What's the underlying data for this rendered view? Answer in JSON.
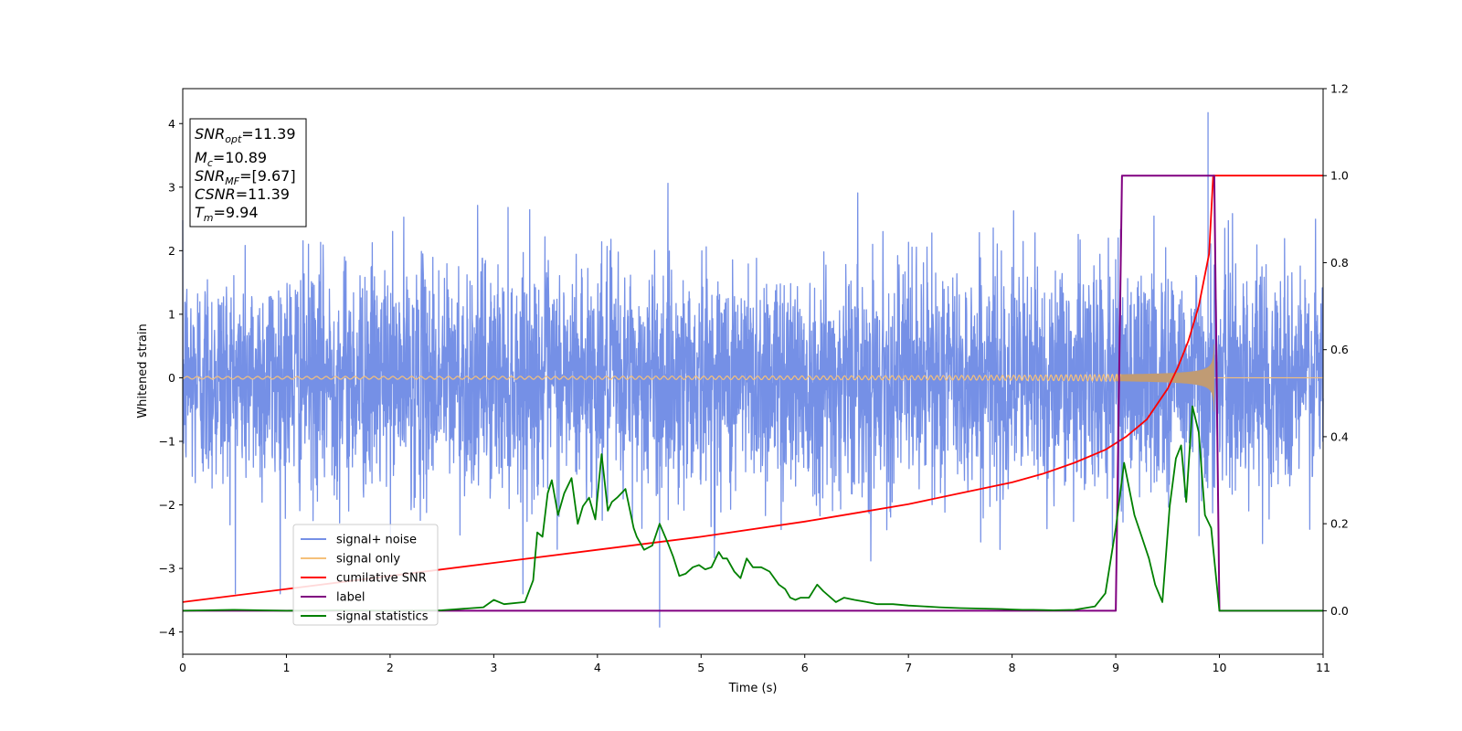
{
  "chart_data": {
    "type": "line",
    "xlabel": "Time (s)",
    "ylabel": "Whitened strain",
    "xlim": [
      0,
      11
    ],
    "ylim_left": [
      -4.35,
      4.55
    ],
    "ylim_right": [
      -0.1,
      1.2
    ],
    "x_ticks": [
      "0",
      "1",
      "2",
      "3",
      "4",
      "5",
      "6",
      "7",
      "8",
      "9",
      "10",
      "11"
    ],
    "y_ticks_left": [
      "4",
      "3",
      "2",
      "1",
      "0",
      "−1",
      "−2",
      "−3",
      "−4"
    ],
    "y_ticks_left_values": [
      4,
      3,
      2,
      1,
      0,
      -1,
      -2,
      -3,
      -4
    ],
    "y_ticks_right": [
      "1.2",
      "1.0",
      "0.8",
      "0.6",
      "0.4",
      "0.2",
      "0.0"
    ],
    "y_ticks_right_values": [
      1.2,
      1.0,
      0.8,
      0.6,
      0.4,
      0.2,
      0.0
    ],
    "grid": false,
    "legend_position": "lower-left",
    "info_box": {
      "snr_opt": "=11.39",
      "mc": "=10.89",
      "snr_mf": "=[9.67]",
      "csnr": "=11.39",
      "tm": "=9.94"
    },
    "series": [
      {
        "name": "signal+ noise",
        "axis": "left",
        "color": "#7590e6",
        "description_values": {
          "noise_amplitude_typical": 1.8,
          "max_peak": 4.18,
          "max_peak_time": 9.89,
          "min_peak": -3.93,
          "min_peak_time": 4.6
        }
      },
      {
        "name": "signal only",
        "axis": "left",
        "color": "#f5c07a",
        "chirp": {
          "amplitude_start": 0.02,
          "amplitude_end": 0.82,
          "merger_time": 9.94,
          "end_time": 9.95
        }
      },
      {
        "name": "cumilative SNR",
        "axis": "right",
        "color": "#ff0000",
        "x": [
          0,
          1,
          2,
          3,
          4,
          5,
          6,
          6.5,
          7,
          7.5,
          8,
          8.3,
          8.6,
          8.9,
          9.1,
          9.3,
          9.5,
          9.6,
          9.7,
          9.8,
          9.9,
          9.94,
          11
        ],
        "y": [
          0.02,
          0.05,
          0.08,
          0.11,
          0.14,
          0.17,
          0.205,
          0.225,
          0.245,
          0.27,
          0.295,
          0.315,
          0.34,
          0.37,
          0.4,
          0.44,
          0.51,
          0.56,
          0.62,
          0.7,
          0.82,
          1.0,
          1.0
        ]
      },
      {
        "name": "label",
        "axis": "right",
        "color": "#800080",
        "x": [
          0,
          9.0,
          9.06,
          9.95,
          10.0,
          11
        ],
        "y": [
          0,
          0,
          1,
          1,
          0,
          0
        ]
      },
      {
        "name": "signal statistics",
        "axis": "right",
        "color": "#008000",
        "x": [
          0,
          0.5,
          1,
          1.5,
          2,
          2.5,
          2.9,
          3.0,
          3.1,
          3.3,
          3.38,
          3.42,
          3.47,
          3.52,
          3.56,
          3.62,
          3.68,
          3.75,
          3.81,
          3.86,
          3.92,
          3.98,
          4.04,
          4.1,
          4.14,
          4.19,
          4.27,
          4.35,
          4.38,
          4.45,
          4.53,
          4.6,
          4.68,
          4.73,
          4.79,
          4.85,
          4.92,
          4.98,
          5.04,
          5.1,
          5.17,
          5.21,
          5.25,
          5.32,
          5.38,
          5.44,
          5.5,
          5.58,
          5.66,
          5.75,
          5.81,
          5.86,
          5.91,
          5.96,
          6.04,
          6.12,
          6.18,
          6.3,
          6.38,
          6.48,
          6.6,
          6.7,
          6.85,
          7.0,
          7.15,
          7.3,
          7.5,
          7.7,
          7.9,
          8.0,
          8.1,
          8.2,
          8.4,
          8.6,
          8.8,
          8.9,
          9.0,
          9.08,
          9.18,
          9.25,
          9.32,
          9.38,
          9.45,
          9.52,
          9.58,
          9.63,
          9.68,
          9.74,
          9.8,
          9.86,
          9.92,
          10.0,
          10.1,
          10.4,
          11
        ],
        "y": [
          0.0,
          0.002,
          0.0,
          0.001,
          0.0,
          0.001,
          0.008,
          0.025,
          0.015,
          0.02,
          0.07,
          0.18,
          0.17,
          0.27,
          0.3,
          0.22,
          0.27,
          0.305,
          0.2,
          0.24,
          0.26,
          0.21,
          0.36,
          0.23,
          0.25,
          0.26,
          0.28,
          0.19,
          0.17,
          0.14,
          0.15,
          0.2,
          0.155,
          0.125,
          0.08,
          0.085,
          0.1,
          0.105,
          0.095,
          0.1,
          0.135,
          0.12,
          0.12,
          0.09,
          0.075,
          0.12,
          0.1,
          0.1,
          0.09,
          0.06,
          0.05,
          0.03,
          0.025,
          0.03,
          0.03,
          0.06,
          0.045,
          0.02,
          0.03,
          0.025,
          0.02,
          0.015,
          0.015,
          0.012,
          0.01,
          0.008,
          0.006,
          0.005,
          0.004,
          0.003,
          0.002,
          0.002,
          0.001,
          0.002,
          0.01,
          0.04,
          0.19,
          0.34,
          0.22,
          0.17,
          0.12,
          0.06,
          0.02,
          0.24,
          0.35,
          0.38,
          0.25,
          0.47,
          0.41,
          0.22,
          0.19,
          0.0,
          0.0,
          0.0,
          0.0
        ]
      }
    ]
  }
}
